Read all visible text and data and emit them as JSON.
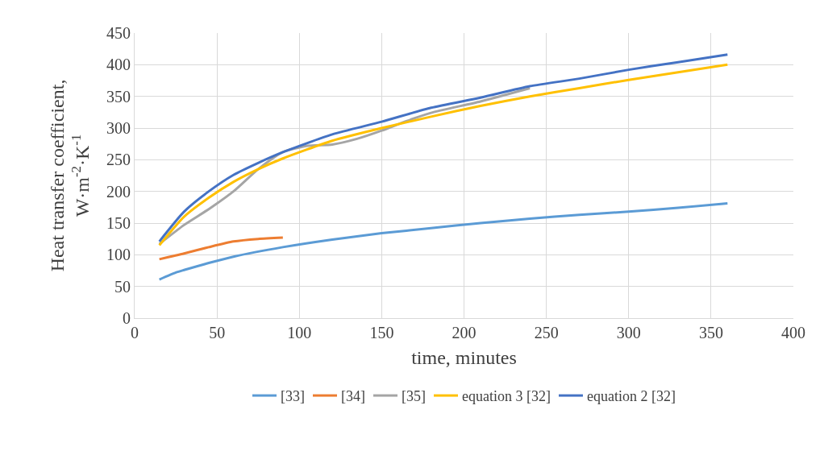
{
  "chart_data": {
    "type": "line",
    "xlabel": "time, minutes",
    "ylabel": "Heat transfer coefficient,\nW·m$^{-2}$·K$^{-1}$",
    "xlim": [
      0,
      400
    ],
    "xticks": [
      0,
      50,
      100,
      150,
      200,
      250,
      300,
      350,
      400
    ],
    "ylim": [
      0,
      450
    ],
    "yticks": [
      0,
      50,
      100,
      150,
      200,
      250,
      300,
      350,
      400,
      450
    ],
    "grid": true,
    "legend": "bottom",
    "marker": "none",
    "line_style": "solid",
    "series": [
      {
        "name": "[33]",
        "color": "#5b9bd5",
        "x": [
          15,
          25,
          30,
          45,
          60,
          90,
          120,
          150,
          180,
          210,
          240,
          270,
          300,
          330,
          360
        ],
        "values": [
          61,
          72,
          76,
          87,
          97,
          112,
          124,
          134,
          142,
          150,
          157,
          163,
          168,
          174,
          181
        ]
      },
      {
        "name": "[34]",
        "color": "#ed7d31",
        "x": [
          15,
          30,
          45,
          60,
          75,
          90
        ],
        "values": [
          93,
          102,
          112,
          121,
          125,
          127
        ]
      },
      {
        "name": "[35]",
        "color": "#a5a5a5",
        "x": [
          15,
          30,
          45,
          60,
          75,
          90,
          105,
          120,
          135,
          150,
          165,
          180,
          210,
          240
        ],
        "values": [
          117,
          147,
          172,
          200,
          235,
          262,
          272,
          274,
          283,
          296,
          311,
          324,
          342,
          363
        ]
      },
      {
        "name": "equation 3 [32]",
        "color": "#ffc000",
        "x": [
          15,
          30,
          45,
          60,
          75,
          90,
          120,
          150,
          180,
          210,
          240,
          270,
          300,
          330,
          360
        ],
        "values": [
          115,
          160,
          190,
          215,
          235,
          252,
          280,
          300,
          318,
          335,
          350,
          363,
          376,
          388,
          400
        ]
      },
      {
        "name": "equation 2 [32]",
        "color": "#4472c4",
        "x": [
          15,
          30,
          45,
          60,
          75,
          90,
          120,
          150,
          180,
          210,
          240,
          270,
          300,
          330,
          360
        ],
        "values": [
          121,
          168,
          200,
          226,
          245,
          262,
          290,
          310,
          332,
          348,
          366,
          378,
          392,
          404,
          416
        ]
      }
    ]
  }
}
